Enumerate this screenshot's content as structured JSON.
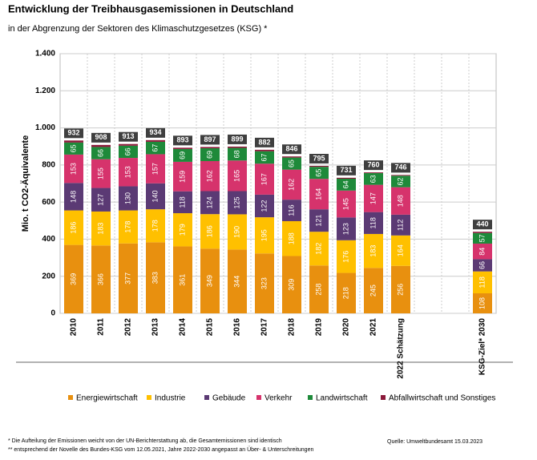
{
  "chart_data": {
    "type": "bar",
    "stacked": true,
    "title": "Entwicklung der Treibhausgasemissionen in Deutschland",
    "subtitle": "in der Abgrenzung der Sektoren des Klimaschutzgesetzes (KSG) *",
    "y_label": "Mio. t CO2-Äquivalente",
    "categories": [
      "2010",
      "2011",
      "2012",
      "2013",
      "2014",
      "2015",
      "2016",
      "2017",
      "2018",
      "2019",
      "2020",
      "2021",
      "2022 Schätzung",
      null,
      null,
      "KSG-Ziel* 2030"
    ],
    "series": [
      {
        "name": "Energiewirtschaft",
        "color": "#e8900f",
        "values": [
          369,
          366,
          377,
          383,
          361,
          349,
          344,
          323,
          309,
          258,
          218,
          245,
          256,
          null,
          null,
          108
        ]
      },
      {
        "name": "Industrie",
        "color": "#ffc000",
        "values": [
          186,
          183,
          178,
          178,
          179,
          186,
          190,
          195,
          188,
          182,
          176,
          183,
          164,
          null,
          null,
          118
        ]
      },
      {
        "name": "Gebäude",
        "color": "#5b3a74",
        "values": [
          148,
          127,
          130,
          140,
          118,
          124,
          125,
          122,
          116,
          121,
          123,
          118,
          112,
          null,
          null,
          66
        ]
      },
      {
        "name": "Verkehr",
        "color": "#d6336c",
        "values": [
          153,
          155,
          153,
          157,
          159,
          162,
          165,
          167,
          162,
          164,
          145,
          147,
          148,
          null,
          null,
          84
        ]
      },
      {
        "name": "Landwirtschaft",
        "color": "#1e8a3a",
        "values": [
          65,
          66,
          66,
          67,
          69,
          69,
          68,
          67,
          65,
          65,
          64,
          63,
          62,
          null,
          null,
          57
        ]
      },
      {
        "name": "Abfallwirtschaft und Sonstiges",
        "color": "#8b1a3a",
        "values": [
          11,
          11,
          9,
          9,
          7,
          7,
          7,
          8,
          6,
          5,
          5,
          4,
          4,
          null,
          null,
          7
        ]
      }
    ],
    "totals": [
      932,
      908,
      913,
      934,
      893,
      897,
      899,
      882,
      846,
      795,
      731,
      760,
      746,
      null,
      null,
      440
    ],
    "ylim": [
      0,
      1400
    ],
    "yticks": [
      0,
      200,
      400,
      600,
      800,
      {
        "value": 1000,
        "label": "1.000"
      },
      {
        "value": 1200,
        "label": "1.200"
      },
      {
        "value": 1400,
        "label": "1.400"
      }
    ],
    "grid": true,
    "footnotes": [
      "* Die Aufteilung der Emissionen weicht von der UN-Berichterstattung ab, die Gesamtemissionen sind identisch",
      "** entsprechend der Novelle des Bundes-KSG vom 12.05.2021, Jahre 2022-2030 angepasst an Über- & Unterschreitungen"
    ],
    "source": "Quelle: Umweltbundesamt  15.03.2023"
  }
}
